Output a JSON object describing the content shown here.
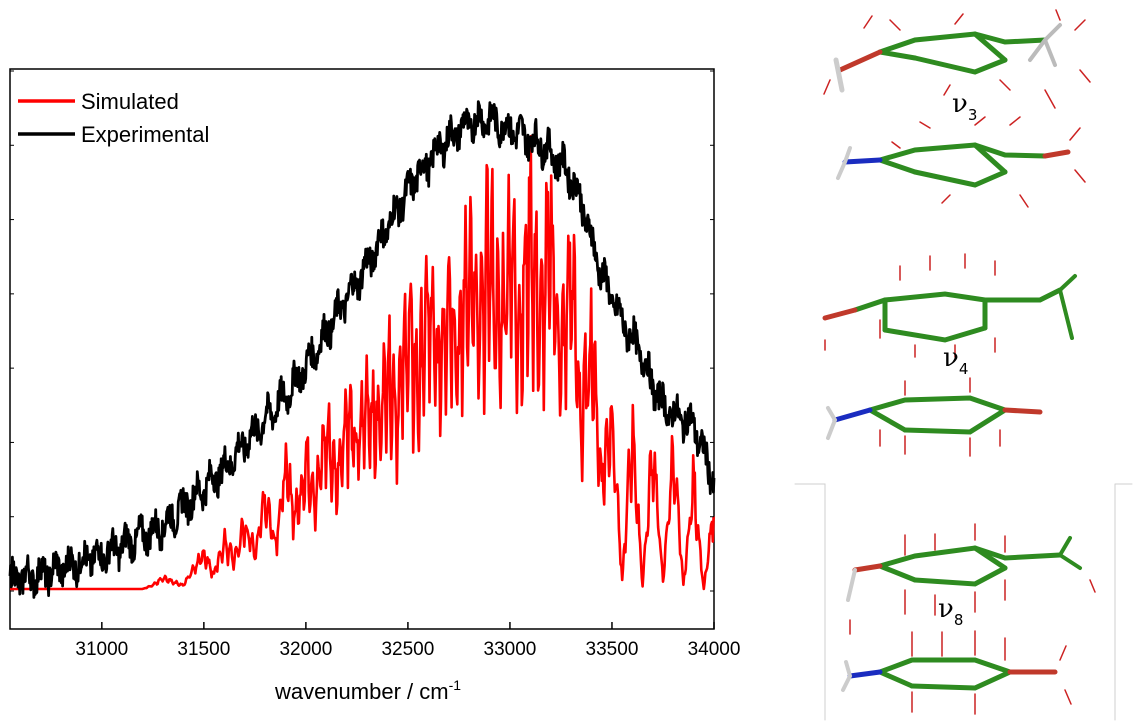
{
  "chart_data": {
    "type": "line",
    "xlabel": "wavenumber / cm",
    "xlabel_sup": "-1",
    "ylabel": "",
    "xlim": [
      30550,
      34000
    ],
    "ylim": [
      0,
      1.0
    ],
    "x_ticks": [
      31000,
      31500,
      32000,
      32500,
      33000,
      33500,
      34000
    ],
    "y_ticks_count": 8,
    "legend_position": "top-left",
    "series": [
      {
        "name": "Simulated",
        "color": "#ff0000",
        "x": [
          30550,
          30700,
          30850,
          31000,
          31100,
          31200,
          31250,
          31300,
          31400,
          31450,
          31500,
          31550,
          31600,
          31650,
          31700,
          31750,
          31800,
          31850,
          31900,
          31950,
          32000,
          32050,
          32100,
          32150,
          32200,
          32250,
          32300,
          32350,
          32400,
          32450,
          32500,
          32550,
          32600,
          32650,
          32700,
          32750,
          32800,
          32850,
          32900,
          32950,
          33000,
          33050,
          33100,
          33150,
          33200,
          33250,
          33300,
          33350,
          33400,
          33450,
          33500,
          33550,
          33600,
          33650,
          33700,
          33750,
          33800,
          33850,
          33900,
          33950,
          34000
        ],
        "values": [
          0.0,
          0.0,
          0.0,
          0.0,
          0.0,
          0.0,
          0.01,
          0.03,
          0.01,
          0.06,
          0.1,
          0.04,
          0.13,
          0.08,
          0.18,
          0.1,
          0.26,
          0.13,
          0.33,
          0.2,
          0.36,
          0.26,
          0.44,
          0.3,
          0.5,
          0.38,
          0.54,
          0.44,
          0.62,
          0.5,
          0.72,
          0.55,
          0.8,
          0.6,
          0.86,
          0.65,
          0.92,
          0.68,
          0.96,
          0.7,
          0.98,
          0.72,
          1.0,
          0.7,
          1.0,
          0.62,
          0.9,
          0.45,
          0.7,
          0.3,
          0.5,
          0.02,
          0.45,
          0.01,
          0.4,
          0.02,
          0.38,
          0.01,
          0.3,
          0.0,
          0.22
        ]
      },
      {
        "name": "Experimental",
        "color": "#000000",
        "x": [
          30550,
          30700,
          30850,
          31000,
          31100,
          31200,
          31300,
          31400,
          31500,
          31600,
          31700,
          31800,
          31900,
          32000,
          32100,
          32200,
          32300,
          32400,
          32500,
          32550,
          32600,
          32650,
          32700,
          32750,
          32800,
          32850,
          32900,
          32950,
          33000,
          33050,
          33100,
          33150,
          33200,
          33250,
          33300,
          33350,
          33400,
          33450,
          33500,
          33550,
          33600,
          33650,
          33700,
          33750,
          33800,
          33850,
          33900,
          33950,
          34000
        ],
        "values": [
          0.02,
          0.03,
          0.05,
          0.07,
          0.09,
          0.11,
          0.13,
          0.17,
          0.21,
          0.25,
          0.3,
          0.35,
          0.4,
          0.46,
          0.53,
          0.6,
          0.67,
          0.75,
          0.82,
          0.86,
          0.88,
          0.91,
          0.93,
          0.95,
          0.96,
          0.97,
          0.97,
          0.96,
          0.95,
          0.94,
          0.93,
          0.92,
          0.9,
          0.88,
          0.85,
          0.8,
          0.72,
          0.65,
          0.6,
          0.55,
          0.52,
          0.48,
          0.42,
          0.38,
          0.36,
          0.35,
          0.34,
          0.28,
          0.22
        ]
      }
    ]
  },
  "modes": [
    {
      "label": "ν",
      "sub": "3"
    },
    {
      "label": "ν",
      "sub": "4"
    },
    {
      "label": "ν",
      "sub": "8"
    }
  ]
}
